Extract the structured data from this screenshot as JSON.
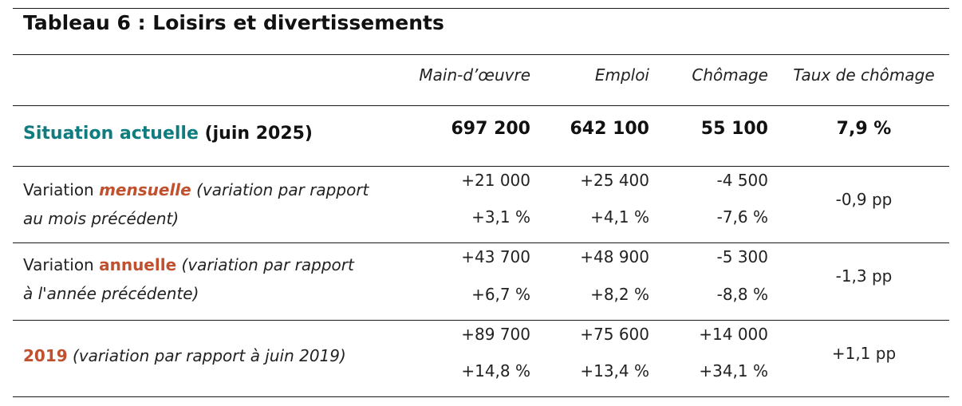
{
  "title": "Tableau 6 : Loisirs et divertissements",
  "headers": {
    "labour_force": "Main-d’œuvre",
    "employment": "Emploi",
    "unemployment": "Chômage",
    "rate": "Taux de chômage"
  },
  "current": {
    "label_main": "Situation actuelle",
    "label_date": "(juin 2025)",
    "labour_force": "697 200",
    "employment": "642 100",
    "unemployment": "55 100",
    "rate": "7,9 %"
  },
  "monthly": {
    "label_prefix": "Variation ",
    "label_key": "mensuelle",
    "label_note": "(variation par rapport",
    "label_note2": "au mois précédent)",
    "labour_force_abs": "+21 000",
    "labour_force_pct": "+3,1 %",
    "employment_abs": "+25 400",
    "employment_pct": "+4,1 %",
    "unemployment_abs": "-4 500",
    "unemployment_pct": "-7,6 %",
    "rate": "-0,9 pp"
  },
  "annual": {
    "label_prefix": "Variation ",
    "label_key": "annuelle",
    "label_note": "(variation par rapport",
    "label_note2": "à l'année précédente)",
    "labour_force_abs": "+43 700",
    "labour_force_pct": "+6,7 %",
    "employment_abs": "+48 900",
    "employment_pct": "+8,2 %",
    "unemployment_abs": "-5 300",
    "unemployment_pct": "-8,8 %",
    "rate": "-1,3 pp"
  },
  "since2019": {
    "label_key": "2019",
    "label_note": "(variation par rapport à juin 2019)",
    "labour_force_abs": "+89 700",
    "labour_force_pct": "+14,8 %",
    "employment_abs": "+75 600",
    "employment_pct": "+13,4 %",
    "unemployment_abs": "+14 000",
    "unemployment_pct": "+34,1 %",
    "rate": "+1,1 pp"
  },
  "colors": {
    "accent": "#c0502e",
    "teal": "#0f7d80"
  }
}
